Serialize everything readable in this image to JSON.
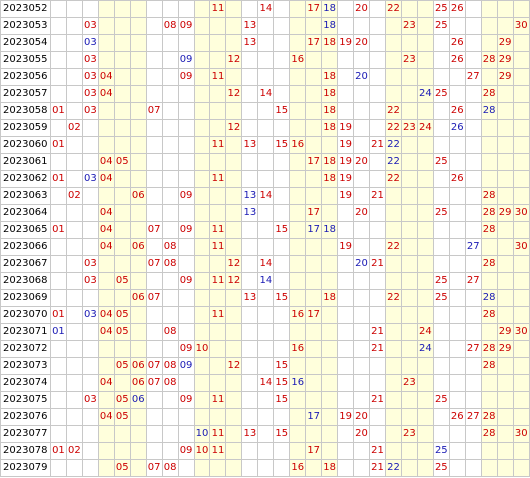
{
  "number_count": 30,
  "shaded_columns": [
    4,
    5,
    6,
    10,
    11,
    12,
    16,
    17,
    18,
    22,
    23,
    24,
    28,
    29,
    30
  ],
  "colors": {
    "red": "#cc0000",
    "blue": "#1a1ab4",
    "shade": "#ffffdc",
    "grid": "#c8c8c8"
  },
  "rows": [
    {
      "period": "2023052",
      "red": [
        11,
        14,
        17,
        20,
        22,
        25,
        26
      ],
      "blue": [
        18
      ]
    },
    {
      "period": "2023053",
      "red": [
        3,
        8,
        9,
        13,
        23,
        25,
        30
      ],
      "blue": [
        18
      ]
    },
    {
      "period": "2023054",
      "red": [
        13,
        17,
        18,
        19,
        20,
        26,
        29
      ],
      "blue": [
        3
      ]
    },
    {
      "period": "2023055",
      "red": [
        3,
        12,
        16,
        23,
        26,
        28,
        29
      ],
      "blue": [
        9
      ]
    },
    {
      "period": "2023056",
      "red": [
        3,
        4,
        9,
        11,
        18,
        27,
        29
      ],
      "blue": [
        20
      ]
    },
    {
      "period": "2023057",
      "red": [
        3,
        4,
        12,
        14,
        18,
        25,
        28
      ],
      "blue": [
        24
      ]
    },
    {
      "period": "2023058",
      "red": [
        1,
        3,
        7,
        15,
        18,
        22,
        26
      ],
      "blue": [
        28
      ]
    },
    {
      "period": "2023059",
      "red": [
        2,
        12,
        18,
        19,
        22,
        23,
        24
      ],
      "blue": [
        26
      ]
    },
    {
      "period": "2023060",
      "red": [
        1,
        11,
        13,
        15,
        16,
        19,
        21
      ],
      "blue": [
        22
      ]
    },
    {
      "period": "2023061",
      "red": [
        4,
        5,
        17,
        18,
        19,
        20,
        25
      ],
      "blue": [
        22
      ]
    },
    {
      "period": "2023062",
      "red": [
        1,
        4,
        11,
        18,
        19,
        22,
        26
      ],
      "blue": [
        3
      ]
    },
    {
      "period": "2023063",
      "red": [
        2,
        6,
        9,
        14,
        19,
        21,
        28
      ],
      "blue": [
        13
      ]
    },
    {
      "period": "2023064",
      "red": [
        4,
        17,
        20,
        25,
        28,
        29,
        30
      ],
      "blue": [
        13
      ]
    },
    {
      "period": "2023065",
      "red": [
        1,
        4,
        7,
        9,
        11,
        15,
        28
      ],
      "blue": [
        17,
        18
      ]
    },
    {
      "period": "2023066",
      "red": [
        4,
        6,
        8,
        11,
        19,
        22,
        30
      ],
      "blue": [
        27
      ]
    },
    {
      "period": "2023067",
      "red": [
        3,
        7,
        8,
        12,
        14,
        21,
        28
      ],
      "blue": [
        20
      ]
    },
    {
      "period": "2023068",
      "red": [
        3,
        5,
        9,
        11,
        12,
        25,
        27
      ],
      "blue": [
        14
      ]
    },
    {
      "period": "2023069",
      "red": [
        6,
        7,
        13,
        15,
        18,
        22,
        25
      ],
      "blue": [
        28
      ]
    },
    {
      "period": "2023070",
      "red": [
        1,
        4,
        5,
        11,
        16,
        17,
        28
      ],
      "blue": [
        3
      ]
    },
    {
      "period": "2023071",
      "red": [
        4,
        5,
        8,
        21,
        24,
        29,
        30
      ],
      "blue": [
        1
      ]
    },
    {
      "period": "2023072",
      "red": [
        9,
        10,
        16,
        21,
        27,
        28,
        29
      ],
      "blue": [
        24
      ]
    },
    {
      "period": "2023073",
      "red": [
        5,
        6,
        7,
        8,
        12,
        15,
        28
      ],
      "blue": [
        9
      ]
    },
    {
      "period": "2023074",
      "red": [
        4,
        6,
        7,
        8,
        14,
        15,
        23
      ],
      "blue": [
        16
      ]
    },
    {
      "period": "2023075",
      "red": [
        3,
        5,
        9,
        11,
        15,
        21,
        25
      ],
      "blue": [
        6
      ]
    },
    {
      "period": "2023076",
      "red": [
        4,
        5,
        19,
        20,
        26,
        27,
        28
      ],
      "blue": [
        17
      ]
    },
    {
      "period": "2023077",
      "red": [
        11,
        13,
        15,
        20,
        23,
        28,
        30
      ],
      "blue": [
        10
      ]
    },
    {
      "period": "2023078",
      "red": [
        1,
        2,
        9,
        10,
        11,
        17,
        21
      ],
      "blue": [
        25
      ]
    },
    {
      "period": "2023079",
      "red": [
        5,
        7,
        8,
        16,
        18,
        21,
        25
      ],
      "blue": [
        22
      ]
    }
  ]
}
